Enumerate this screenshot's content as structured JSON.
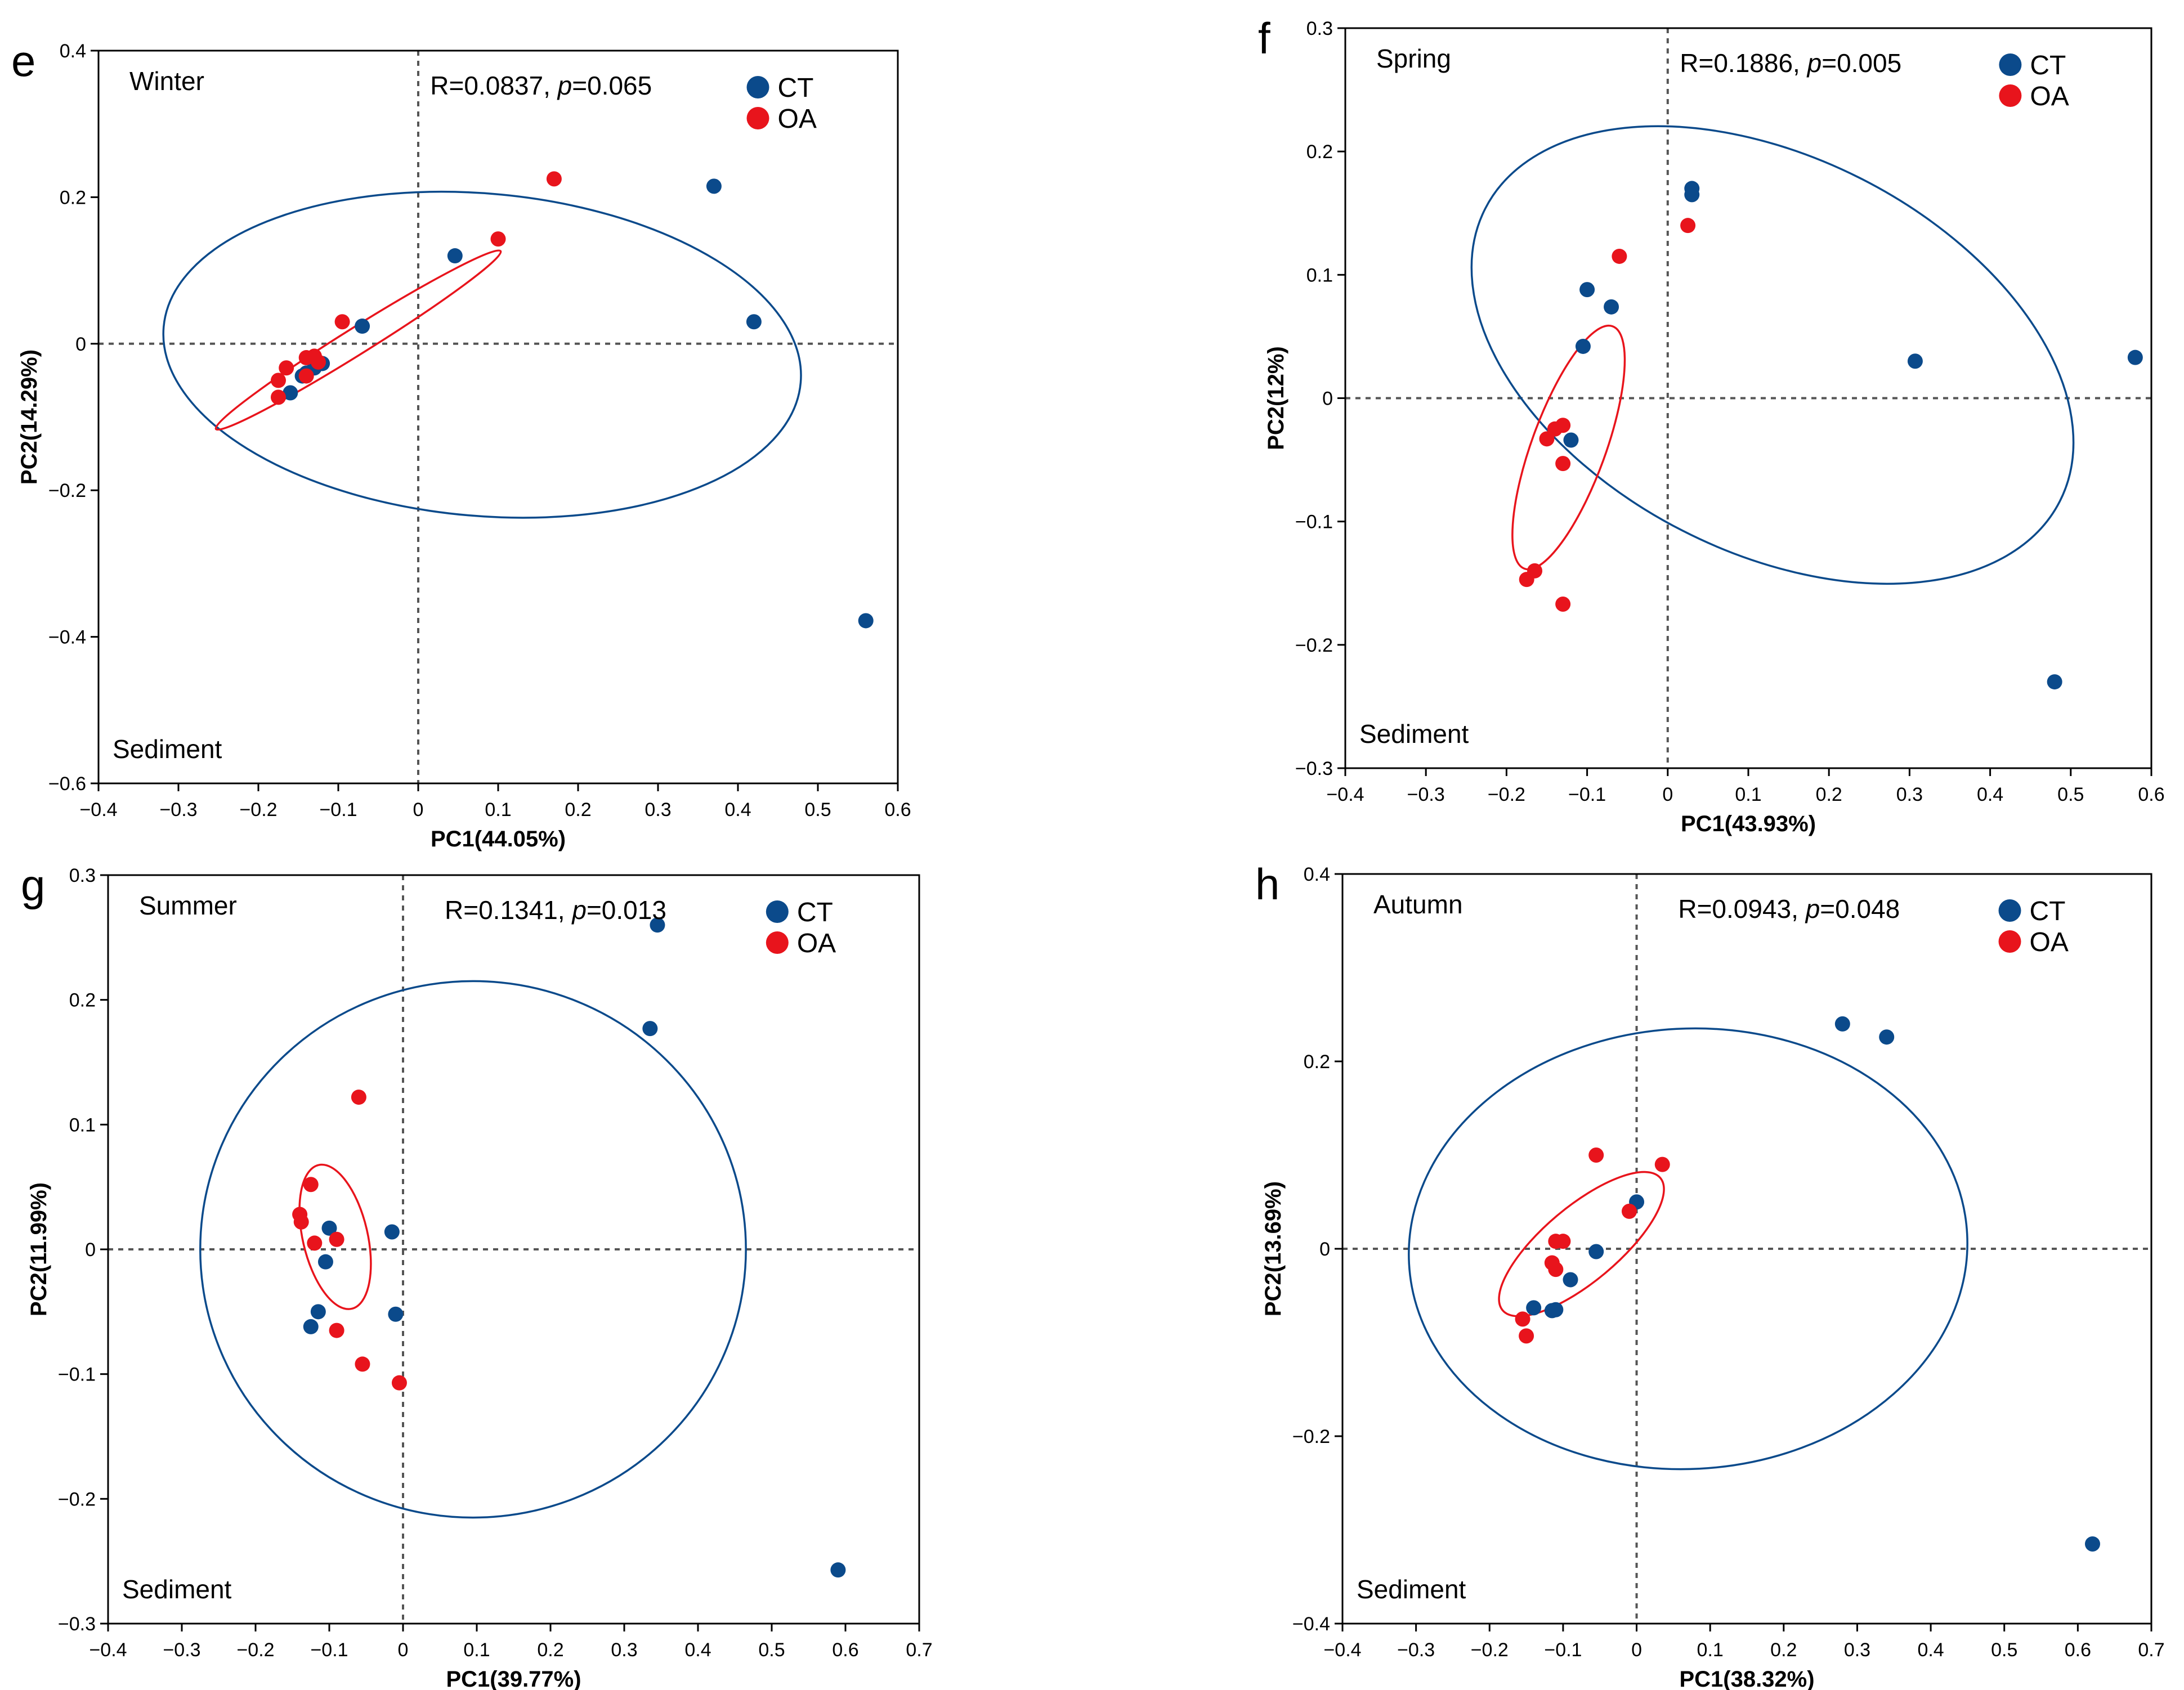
{
  "figure": {
    "colors": {
      "CT": "#0b4a8b",
      "OA": "#e8141c",
      "axis": "#000000",
      "ref": "#555555"
    }
  },
  "chart_data": [
    {
      "type": "scatter",
      "panel": "e",
      "title": "Winter",
      "stat_prefix": "R=0.0837, ",
      "stat_p_label": "p",
      "stat_suffix": "=0.065",
      "corner_label": "Sediment",
      "xlabel": "PC1(44.05%)",
      "ylabel": "PC2(14.29%)",
      "xlim": [
        -0.4,
        0.6
      ],
      "ylim": [
        -0.6,
        0.4
      ],
      "xticks": [
        -0.4,
        -0.3,
        -0.2,
        -0.1,
        0,
        0.1,
        0.2,
        0.3,
        0.4,
        0.5,
        0.6
      ],
      "yticks": [
        -0.6,
        -0.4,
        -0.2,
        0,
        0.2,
        0.4
      ],
      "xtick_labels": [
        "−0.4",
        "−0.3",
        "−0.2",
        "−0.1",
        "0",
        "0.1",
        "0.2",
        "0.3",
        "0.4",
        "0.5",
        "0.6"
      ],
      "ytick_labels": [
        "−0.6",
        "−0.4",
        "−0.2",
        "0",
        "0.2",
        "0.4"
      ],
      "legend": [
        "CT",
        "OA"
      ],
      "legend_position": "top-right",
      "series": [
        {
          "name": "CT",
          "points": [
            [
              0.37,
              0.215
            ],
            [
              0.42,
              0.03
            ],
            [
              0.56,
              -0.378
            ],
            [
              0.046,
              0.12
            ],
            [
              -0.07,
              0.024
            ],
            [
              -0.12,
              -0.027
            ],
            [
              -0.14,
              -0.04
            ],
            [
              -0.16,
              -0.067
            ],
            [
              -0.145,
              -0.044
            ],
            [
              -0.13,
              -0.033
            ]
          ]
        },
        {
          "name": "OA",
          "points": [
            [
              0.17,
              0.225
            ],
            [
              0.1,
              0.143
            ],
            [
              -0.095,
              0.03
            ],
            [
              -0.13,
              -0.017
            ],
            [
              -0.14,
              -0.019
            ],
            [
              -0.14,
              -0.044
            ],
            [
              -0.165,
              -0.033
            ],
            [
              -0.175,
              -0.05
            ],
            [
              -0.175,
              -0.073
            ],
            [
              -0.125,
              -0.025
            ]
          ]
        }
      ],
      "ellipses": [
        {
          "name": "CT",
          "center": [
            0.08,
            -0.015
          ],
          "semi_axes": [
            0.4,
            0.22
          ],
          "angle_deg": -5
        },
        {
          "name": "OA",
          "center": [
            -0.075,
            0.005
          ],
          "semi_axes": [
            0.21,
            0.018
          ],
          "angle_deg": 32
        }
      ]
    },
    {
      "type": "scatter",
      "panel": "f",
      "title": "Spring",
      "stat_prefix": "R=0.1886, ",
      "stat_p_label": "p",
      "stat_suffix": "=0.005",
      "corner_label": "Sediment",
      "xlabel": "PC1(43.93%)",
      "ylabel": "PC2(12%)",
      "xlim": [
        -0.4,
        0.6
      ],
      "ylim": [
        -0.3,
        0.3
      ],
      "xticks": [
        -0.4,
        -0.3,
        -0.2,
        -0.1,
        0,
        0.1,
        0.2,
        0.3,
        0.4,
        0.5,
        0.6
      ],
      "yticks": [
        -0.3,
        -0.2,
        -0.1,
        0,
        0.1,
        0.2,
        0.3
      ],
      "xtick_labels": [
        "−0.4",
        "−0.3",
        "−0.2",
        "−0.1",
        "0",
        "0.1",
        "0.2",
        "0.3",
        "0.4",
        "0.5",
        "0.6"
      ],
      "ytick_labels": [
        "−0.3",
        "−0.2",
        "−0.1",
        "0",
        "0.1",
        "0.2",
        "0.3"
      ],
      "legend": [
        "CT",
        "OA"
      ],
      "legend_position": "top-right",
      "series": [
        {
          "name": "CT",
          "points": [
            [
              0.03,
              0.17
            ],
            [
              0.03,
              0.165
            ],
            [
              -0.1,
              0.088
            ],
            [
              -0.07,
              0.074
            ],
            [
              -0.105,
              0.042
            ],
            [
              0.307,
              0.03
            ],
            [
              0.58,
              0.033
            ],
            [
              0.48,
              -0.23
            ],
            [
              -0.12,
              -0.034
            ]
          ]
        },
        {
          "name": "OA",
          "points": [
            [
              -0.06,
              0.115
            ],
            [
              0.025,
              0.14
            ],
            [
              -0.13,
              -0.022
            ],
            [
              -0.15,
              -0.033
            ],
            [
              -0.14,
              -0.025
            ],
            [
              -0.13,
              -0.053
            ],
            [
              -0.165,
              -0.14
            ],
            [
              -0.175,
              -0.147
            ],
            [
              -0.13,
              -0.167
            ]
          ]
        }
      ],
      "ellipses": [
        {
          "name": "CT",
          "center": [
            0.13,
            0.035
          ],
          "semi_axes": [
            0.4,
            0.16
          ],
          "angle_deg": -27
        },
        {
          "name": "OA",
          "center": [
            -0.123,
            -0.04
          ],
          "semi_axes": [
            0.16,
            0.03
          ],
          "angle_deg": 70
        }
      ]
    },
    {
      "type": "scatter",
      "panel": "g",
      "title": "Summer",
      "stat_prefix": "R=0.1341, ",
      "stat_p_label": "p",
      "stat_suffix": "=0.013",
      "corner_label": "Sediment",
      "xlabel": "PC1(39.77%)",
      "ylabel": "PC2(11.99%)",
      "xlim": [
        -0.4,
        0.7
      ],
      "ylim": [
        -0.3,
        0.3
      ],
      "xticks": [
        -0.4,
        -0.3,
        -0.2,
        -0.1,
        0,
        0.1,
        0.2,
        0.3,
        0.4,
        0.5,
        0.6,
        0.7
      ],
      "yticks": [
        -0.3,
        -0.2,
        -0.1,
        0,
        0.1,
        0.2,
        0.3
      ],
      "xtick_labels": [
        "−0.4",
        "−0.3",
        "−0.2",
        "−0.1",
        "0",
        "0.1",
        "0.2",
        "0.3",
        "0.4",
        "0.5",
        "0.6",
        "0.7"
      ],
      "ytick_labels": [
        "−0.3",
        "−0.2",
        "−0.1",
        "0",
        "0.1",
        "0.2",
        "0.3"
      ],
      "legend": [
        "CT",
        "OA"
      ],
      "legend_position": "top-right",
      "series": [
        {
          "name": "CT",
          "points": [
            [
              0.345,
              0.26
            ],
            [
              0.335,
              0.177
            ],
            [
              -0.015,
              0.014
            ],
            [
              -0.1,
              0.017
            ],
            [
              -0.105,
              -0.01
            ],
            [
              -0.115,
              -0.05
            ],
            [
              -0.125,
              -0.062
            ],
            [
              -0.01,
              -0.052
            ],
            [
              0.59,
              -0.257
            ]
          ]
        },
        {
          "name": "OA",
          "points": [
            [
              -0.06,
              0.122
            ],
            [
              -0.125,
              0.052
            ],
            [
              -0.14,
              0.028
            ],
            [
              -0.138,
              0.022
            ],
            [
              -0.12,
              0.005
            ],
            [
              -0.09,
              0.008
            ],
            [
              -0.09,
              -0.065
            ],
            [
              -0.055,
              -0.092
            ],
            [
              -0.005,
              -0.107
            ]
          ]
        }
      ],
      "ellipses": [
        {
          "name": "CT",
          "center": [
            0.095,
            0
          ],
          "semi_axes": [
            0.37,
            0.215
          ],
          "angle_deg": 0
        },
        {
          "name": "OA",
          "center": [
            -0.092,
            0.01
          ],
          "semi_axes": [
            0.1,
            0.026
          ],
          "angle_deg": -77
        }
      ]
    },
    {
      "type": "scatter",
      "panel": "h",
      "title": "Autumn",
      "stat_prefix": "R=0.0943, ",
      "stat_p_label": "p",
      "stat_suffix": "=0.048",
      "corner_label": "Sediment",
      "xlabel": "PC1(38.32%)",
      "ylabel": "PC2(13.69%)",
      "xlim": [
        -0.4,
        0.7
      ],
      "ylim": [
        -0.4,
        0.4
      ],
      "xticks": [
        -0.4,
        -0.3,
        -0.2,
        -0.1,
        0,
        0.1,
        0.2,
        0.3,
        0.4,
        0.5,
        0.6,
        0.7
      ],
      "yticks": [
        -0.4,
        -0.2,
        0,
        0.2,
        0.4
      ],
      "xtick_labels": [
        "−0.4",
        "−0.3",
        "−0.2",
        "−0.1",
        "0",
        "0.1",
        "0.2",
        "0.3",
        "0.4",
        "0.5",
        "0.6",
        "0.7"
      ],
      "ytick_labels": [
        "−0.4",
        "−0.2",
        "0",
        "0.2",
        "0.4"
      ],
      "legend": [
        "CT",
        "OA"
      ],
      "legend_position": "top-right",
      "series": [
        {
          "name": "CT",
          "points": [
            [
              0.28,
              0.24
            ],
            [
              0.34,
              0.226
            ],
            [
              0.0,
              0.05
            ],
            [
              -0.055,
              -0.003
            ],
            [
              -0.09,
              -0.033
            ],
            [
              -0.14,
              -0.063
            ],
            [
              -0.11,
              -0.065
            ],
            [
              -0.115,
              -0.066
            ],
            [
              0.62,
              -0.315
            ]
          ]
        },
        {
          "name": "OA",
          "points": [
            [
              -0.055,
              0.1
            ],
            [
              0.035,
              0.09
            ],
            [
              -0.01,
              0.04
            ],
            [
              -0.11,
              0.008
            ],
            [
              -0.1,
              0.008
            ],
            [
              -0.115,
              -0.015
            ],
            [
              -0.11,
              -0.022
            ],
            [
              -0.155,
              -0.075
            ],
            [
              -0.15,
              -0.093
            ]
          ]
        }
      ],
      "ellipses": [
        {
          "name": "CT",
          "center": [
            0.07,
            0
          ],
          "semi_axes": [
            0.38,
            0.235
          ],
          "angle_deg": 3
        },
        {
          "name": "OA",
          "center": [
            -0.075,
            0.005
          ],
          "semi_axes": [
            0.14,
            0.04
          ],
          "angle_deg": 40
        }
      ]
    }
  ]
}
